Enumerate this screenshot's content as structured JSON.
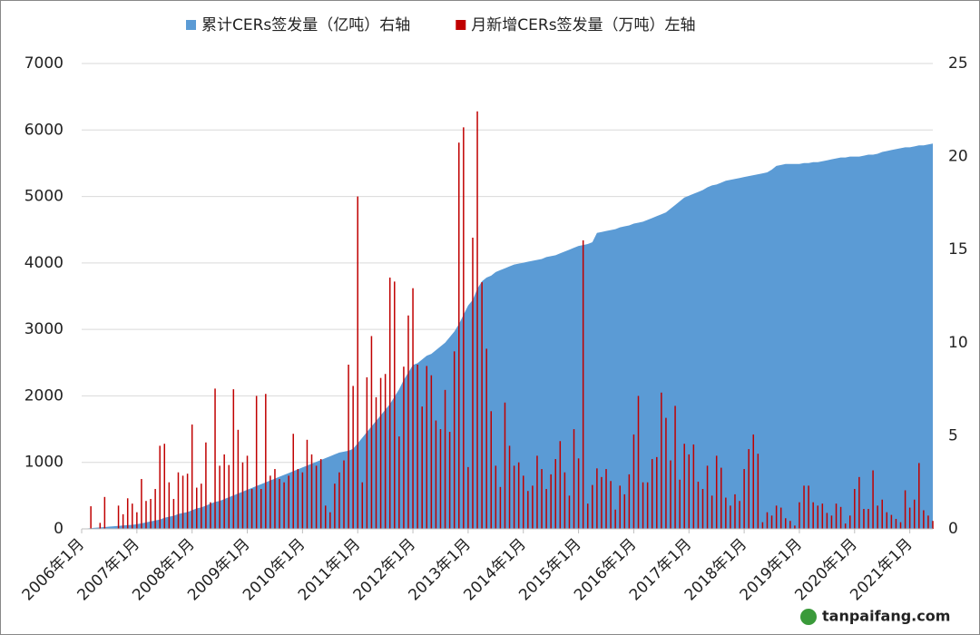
{
  "chart_data": {
    "type": "combo",
    "legend": "top",
    "grid": true,
    "watermark": "tanpaifang.com",
    "categories": [
      "2006年1月",
      null,
      null,
      null,
      null,
      null,
      null,
      null,
      null,
      null,
      null,
      null,
      "2007年1月",
      null,
      null,
      null,
      null,
      null,
      null,
      null,
      null,
      null,
      null,
      null,
      "2008年1月",
      null,
      null,
      null,
      null,
      null,
      null,
      null,
      null,
      null,
      null,
      null,
      "2009年1月",
      null,
      null,
      null,
      null,
      null,
      null,
      null,
      null,
      null,
      null,
      null,
      "2010年1月",
      null,
      null,
      null,
      null,
      null,
      null,
      null,
      null,
      null,
      null,
      null,
      "2011年1月",
      null,
      null,
      null,
      null,
      null,
      null,
      null,
      null,
      null,
      null,
      null,
      "2012年1月",
      null,
      null,
      null,
      null,
      null,
      null,
      null,
      null,
      null,
      null,
      null,
      "2013年1月",
      null,
      null,
      null,
      null,
      null,
      null,
      null,
      null,
      null,
      null,
      null,
      "2014年1月",
      null,
      null,
      null,
      null,
      null,
      null,
      null,
      null,
      null,
      null,
      null,
      "2015年1月",
      null,
      null,
      null,
      null,
      null,
      null,
      null,
      null,
      null,
      null,
      null,
      "2016年1月",
      null,
      null,
      null,
      null,
      null,
      null,
      null,
      null,
      null,
      null,
      null,
      "2017年1月",
      null,
      null,
      null,
      null,
      null,
      null,
      null,
      null,
      null,
      null,
      null,
      "2018年1月",
      null,
      null,
      null,
      null,
      null,
      null,
      null,
      null,
      null,
      null,
      null,
      "2019年1月",
      null,
      null,
      null,
      null,
      null,
      null,
      null,
      null,
      null,
      null,
      null,
      "2020年1月",
      null,
      null,
      null,
      null,
      null,
      null,
      null,
      null,
      null,
      null,
      null,
      "2021年1月",
      null,
      null,
      null,
      null,
      null
    ],
    "ylim": [
      0,
      7000
    ],
    "yticks": [
      0,
      1000,
      2000,
      3000,
      4000,
      5000,
      6000,
      7000
    ],
    "y2lim": [
      0,
      25
    ],
    "y2ticks": [
      0,
      5,
      10,
      15,
      20,
      25
    ],
    "series": [
      {
        "name": "累计CERs签发量（亿吨）右轴",
        "type": "area",
        "axis": "y2",
        "color": "#5b9bd5",
        "values": [
          0,
          0.02,
          0.04,
          0.06,
          0.08,
          0.1,
          0.12,
          0.14,
          0.16,
          0.18,
          0.2,
          0.22,
          0.25,
          0.3,
          0.35,
          0.4,
          0.45,
          0.5,
          0.6,
          0.65,
          0.7,
          0.8,
          0.85,
          0.9,
          1.0,
          1.1,
          1.15,
          1.25,
          1.35,
          1.45,
          1.5,
          1.6,
          1.7,
          1.8,
          1.9,
          2.0,
          2.1,
          2.2,
          2.3,
          2.4,
          2.5,
          2.6,
          2.7,
          2.8,
          2.9,
          3.0,
          3.1,
          3.2,
          3.3,
          3.4,
          3.5,
          3.6,
          3.7,
          3.8,
          3.9,
          4.0,
          4.1,
          4.15,
          4.2,
          4.3,
          4.6,
          4.9,
          5.2,
          5.5,
          5.8,
          6.1,
          6.4,
          6.7,
          7.1,
          7.5,
          8.0,
          8.4,
          8.8,
          8.9,
          9.1,
          9.3,
          9.4,
          9.6,
          9.8,
          10.0,
          10.3,
          10.6,
          11.0,
          11.5,
          12.0,
          12.3,
          12.9,
          13.3,
          13.5,
          13.6,
          13.8,
          13.9,
          14.0,
          14.1,
          14.2,
          14.25,
          14.3,
          14.35,
          14.4,
          14.45,
          14.5,
          14.6,
          14.65,
          14.7,
          14.8,
          14.9,
          15.0,
          15.1,
          15.2,
          15.25,
          15.3,
          15.4,
          15.9,
          15.95,
          16.0,
          16.05,
          16.1,
          16.2,
          16.25,
          16.3,
          16.4,
          16.45,
          16.5,
          16.6,
          16.7,
          16.8,
          16.9,
          17.0,
          17.2,
          17.4,
          17.6,
          17.8,
          17.9,
          18.0,
          18.1,
          18.2,
          18.35,
          18.45,
          18.5,
          18.6,
          18.7,
          18.75,
          18.8,
          18.85,
          18.9,
          18.95,
          19.0,
          19.05,
          19.1,
          19.15,
          19.3,
          19.5,
          19.55,
          19.6,
          19.6,
          19.6,
          19.6,
          19.65,
          19.65,
          19.7,
          19.7,
          19.75,
          19.8,
          19.85,
          19.9,
          19.95,
          19.95,
          20.0,
          20.0,
          20.0,
          20.05,
          20.1,
          20.1,
          20.15,
          20.25,
          20.3,
          20.35,
          20.4,
          20.45,
          20.5,
          20.5,
          20.55,
          20.6,
          20.6,
          20.65,
          20.7
        ]
      },
      {
        "name": "月新增CERs签发量（万吨）左轴",
        "type": "bar",
        "color": "#c00000",
        "values": [
          0,
          0,
          340,
          0,
          90,
          480,
          0,
          0,
          350,
          220,
          460,
          380,
          250,
          750,
          420,
          450,
          600,
          1250,
          1280,
          700,
          450,
          850,
          800,
          830,
          1570,
          620,
          680,
          1300,
          400,
          2110,
          950,
          1120,
          960,
          2100,
          1490,
          1000,
          1100,
          600,
          2000,
          600,
          2030,
          800,
          900,
          750,
          700,
          800,
          1430,
          900,
          850,
          1340,
          1120,
          950,
          1050,
          350,
          250,
          680,
          850,
          1030,
          2470,
          2150,
          5000,
          700,
          2280,
          2900,
          1980,
          2270,
          2330,
          3780,
          3720,
          1390,
          2440,
          3210,
          3620,
          2470,
          1840,
          2450,
          2310,
          1630,
          1500,
          2090,
          1460,
          2670,
          5810,
          6040,
          930,
          4380,
          6280,
          3710,
          2710,
          1770,
          950,
          630,
          1900,
          1250,
          950,
          1000,
          800,
          570,
          650,
          1100,
          900,
          600,
          820,
          1050,
          1320,
          850,
          500,
          1500,
          1060,
          4340,
          380,
          660,
          910,
          780,
          900,
          720,
          290,
          650,
          520,
          820,
          1420,
          2000,
          700,
          700,
          1050,
          1080,
          2050,
          1670,
          1030,
          1850,
          740,
          1280,
          1120,
          1270,
          710,
          600,
          950,
          500,
          1100,
          920,
          470,
          350,
          520,
          420,
          900,
          1200,
          1420,
          1130,
          100,
          250,
          200,
          350,
          320,
          160,
          120,
          50,
          400,
          650,
          650,
          400,
          350,
          380,
          240,
          200,
          380,
          330,
          80,
          200,
          600,
          780,
          300,
          300,
          880,
          350,
          440,
          250,
          210,
          150,
          100,
          580,
          320,
          440,
          990,
          280,
          200,
          120
        ]
      }
    ]
  }
}
